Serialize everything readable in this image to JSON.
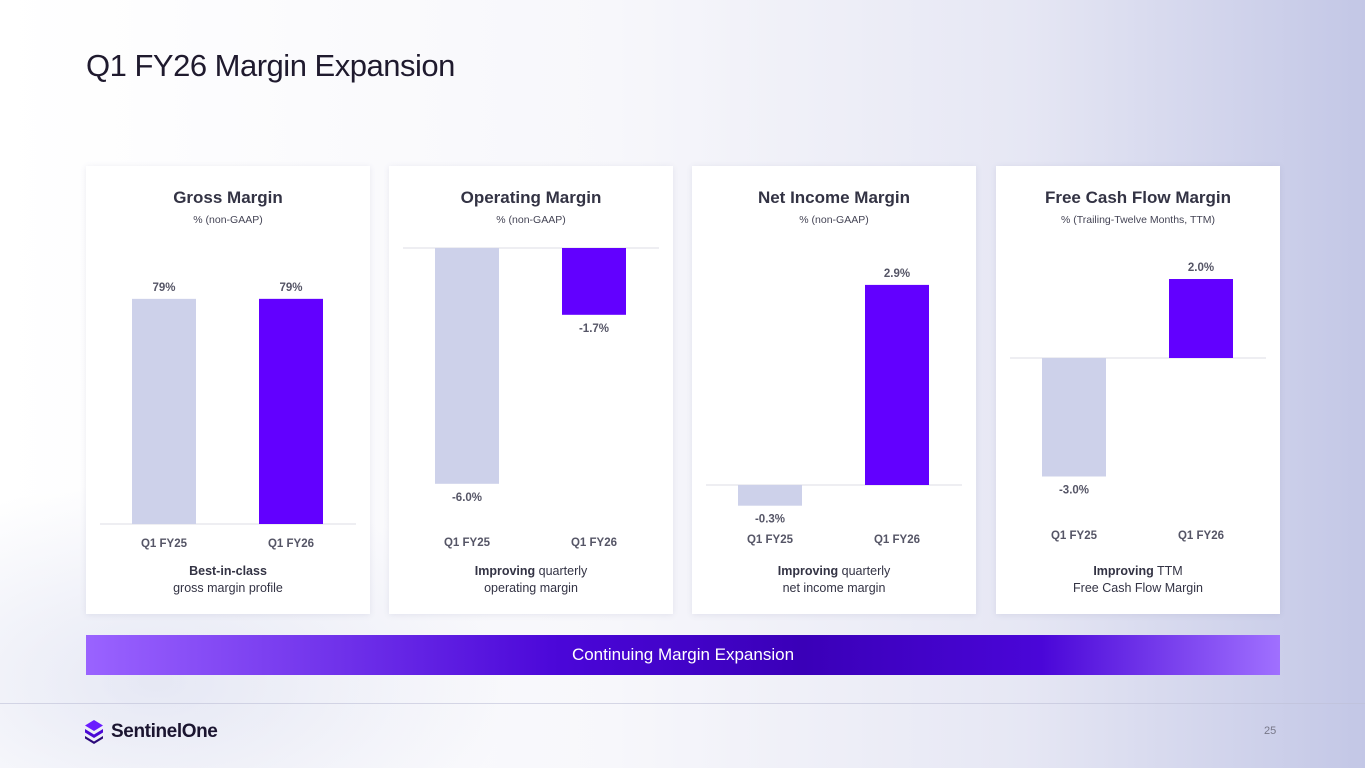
{
  "title": "Q1 FY26 Margin Expansion",
  "colors": {
    "prior": "#cdd1ea",
    "current": "#6200ff",
    "label": "#555566",
    "axis": "#dcdce6"
  },
  "chart_data": [
    {
      "type": "bar",
      "title": "Gross Margin",
      "subtitle": "% (non-GAAP)",
      "categories": [
        "Q1 FY25",
        "Q1 FY26"
      ],
      "values": [
        79,
        79
      ],
      "labels": [
        "79%",
        "79%"
      ],
      "caption_bold": "Best-in-class",
      "caption_normal": "",
      "caption_line2": "gross margin profile"
    },
    {
      "type": "bar",
      "title": "Operating Margin",
      "subtitle": "% (non-GAAP)",
      "categories": [
        "Q1 FY25",
        "Q1 FY26"
      ],
      "values": [
        -6.0,
        -1.7
      ],
      "labels": [
        "-6.0%",
        "-1.7%"
      ],
      "caption_bold": "Improving",
      "caption_normal": " quarterly",
      "caption_line2": "operating margin"
    },
    {
      "type": "bar",
      "title": "Net Income Margin",
      "subtitle": "% (non-GAAP)",
      "categories": [
        "Q1 FY25",
        "Q1 FY26"
      ],
      "values": [
        -0.3,
        2.9
      ],
      "labels": [
        "-0.3%",
        "2.9%"
      ],
      "caption_bold": "Improving",
      "caption_normal": " quarterly",
      "caption_line2": "net income margin"
    },
    {
      "type": "bar",
      "title": "Free Cash Flow Margin",
      "subtitle": "% (Trailing-Twelve Months, TTM)",
      "categories": [
        "Q1 FY25",
        "Q1 FY26"
      ],
      "values": [
        -3.0,
        2.0
      ],
      "labels": [
        "-3.0%",
        "2.0%"
      ],
      "caption_bold": "Improving",
      "caption_normal": " TTM",
      "caption_line2": "Free Cash Flow Margin"
    }
  ],
  "banner": "Continuing Margin Expansion",
  "logo_text": "SentinelOne",
  "page_number": "25"
}
